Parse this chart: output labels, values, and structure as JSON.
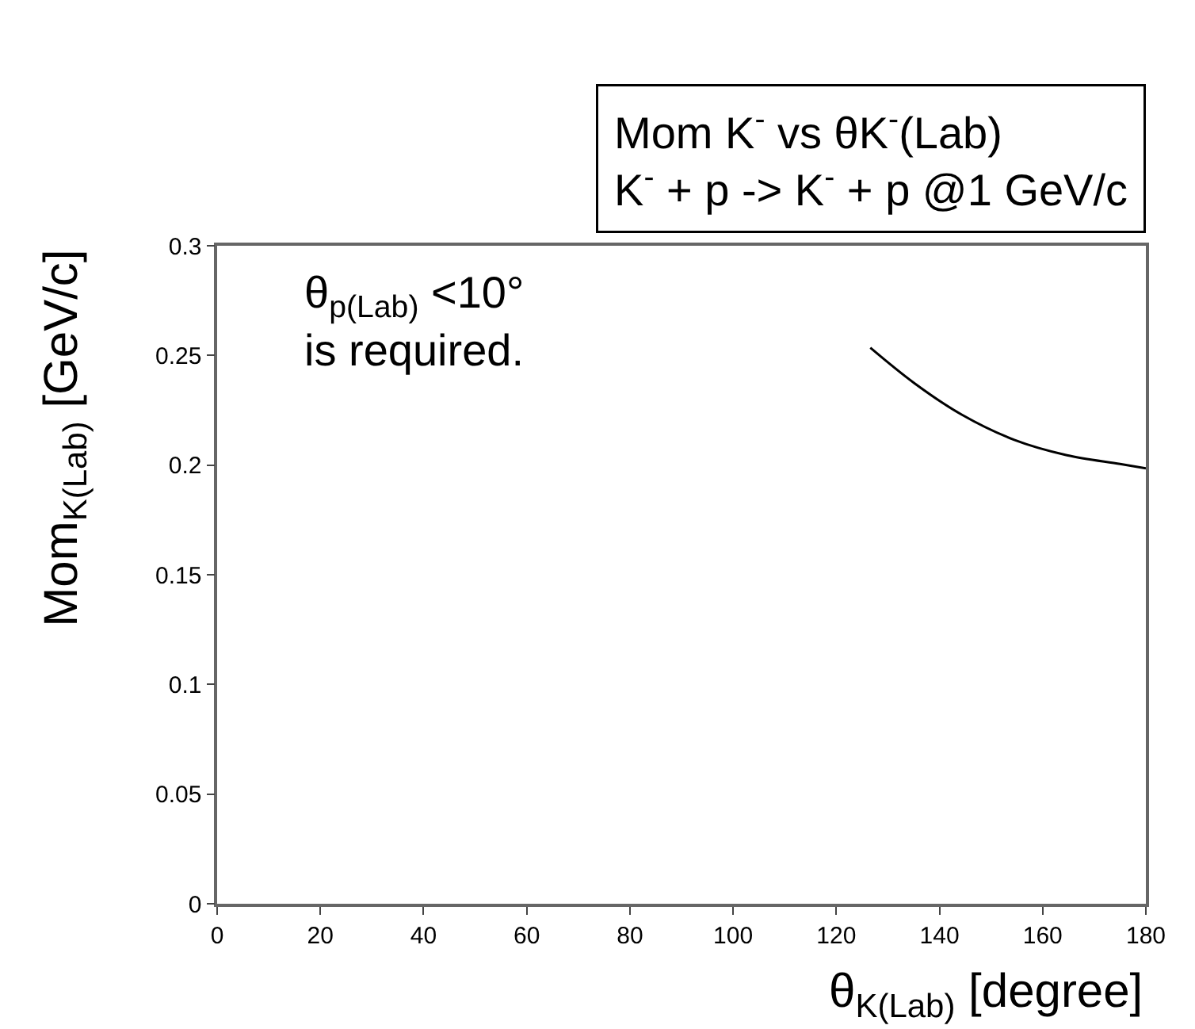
{
  "chart_data": {
    "type": "line",
    "title": "Mom K$^{-}$ vs θK$^{-}$(Lab)\nK$^{-}$ + p -> K$^{-}$ + p @1 GeV/c",
    "xlabel": "θ$_{K(Lab)}$ [degree]",
    "ylabel": "Mom$_{K(Lab)}$ [GeV/c]",
    "annotations": [
      "θ$_{p(Lab)}$ <10°\nis required."
    ],
    "series": [
      {
        "color": "#000000",
        "x": [
          126.6,
          135.1,
          144.3,
          154.5,
          164.7,
          175.0,
          180
        ],
        "values": [
          0.2535,
          0.2374,
          0.223,
          0.2115,
          0.2045,
          0.2005,
          0.1985
        ]
      }
    ],
    "xlim": [
      0,
      180
    ],
    "xticks": [
      0,
      20,
      40,
      60,
      80,
      100,
      120,
      140,
      160,
      180
    ],
    "ylim": [
      0,
      0.3
    ],
    "yticks": [
      0,
      0.05,
      0.1,
      0.15,
      0.2,
      0.25,
      0.3
    ],
    "marker": "none",
    "line_style": "solid"
  }
}
